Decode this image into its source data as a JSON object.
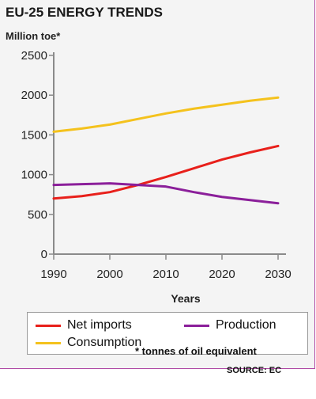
{
  "chart_data": {
    "type": "line",
    "title": "EU-25 ENERGY TRENDS",
    "ylabel": "Million toe*",
    "xlabel": "Years",
    "x": [
      1990,
      1995,
      2000,
      2005,
      2010,
      2015,
      2020,
      2025,
      2030
    ],
    "xticks": [
      1990,
      2000,
      2010,
      2020,
      2030
    ],
    "yticks": [
      0,
      500,
      1000,
      1500,
      2000,
      2500
    ],
    "xlim": [
      1990,
      2030
    ],
    "ylim": [
      0,
      2500
    ],
    "grid": false,
    "series": [
      {
        "name": "Net imports",
        "color": "#e8201b",
        "values": [
          700,
          730,
          780,
          870,
          970,
          1080,
          1190,
          1280,
          1360
        ]
      },
      {
        "name": "Production",
        "color": "#8b1f9a",
        "values": [
          870,
          880,
          890,
          870,
          850,
          780,
          720,
          680,
          640
        ]
      },
      {
        "name": "Consumption",
        "color": "#f4c21d",
        "values": [
          1540,
          1580,
          1630,
          1700,
          1770,
          1830,
          1880,
          1930,
          1970
        ]
      }
    ],
    "footnote": "* tonnes of oil equivalent",
    "source": "SOURCE: EC"
  },
  "legend": {
    "net_imports": "Net imports",
    "production": "Production",
    "consumption": "Consumption"
  },
  "colors": {
    "frame_border": "#b04ca6",
    "background": "#f4f4f4"
  }
}
